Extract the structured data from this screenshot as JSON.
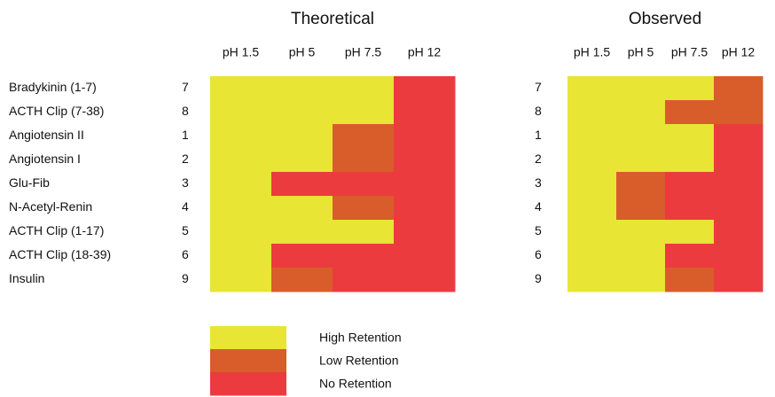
{
  "panels": [
    {
      "title": "Theoretical",
      "columns": [
        "pH 1.5",
        "pH 5",
        "pH 7.5",
        "pH 12"
      ],
      "cells": [
        [
          "High Retention",
          "High Retention",
          "High Retention",
          "No Retention"
        ],
        [
          "High Retention",
          "High Retention",
          "High Retention",
          "No Retention"
        ],
        [
          "High Retention",
          "High Retention",
          "Low Retention",
          "No Retention"
        ],
        [
          "High Retention",
          "High Retention",
          "Low Retention",
          "No Retention"
        ],
        [
          "High Retention",
          "No Retention",
          "No Retention",
          "No Retention"
        ],
        [
          "High Retention",
          "High Retention",
          "Low Retention",
          "No Retention"
        ],
        [
          "High Retention",
          "High Retention",
          "High Retention",
          "No Retention"
        ],
        [
          "High Retention",
          "No Retention",
          "No Retention",
          "No Retention"
        ],
        [
          "High Retention",
          "Low Retention",
          "No Retention",
          "No Retention"
        ]
      ]
    },
    {
      "title": "Observed",
      "columns": [
        "pH 1.5",
        "pH 5",
        "pH 7.5",
        "pH 12"
      ],
      "cells": [
        [
          "High Retention",
          "High Retention",
          "High Retention",
          "Low Retention"
        ],
        [
          "High Retention",
          "High Retention",
          "Low Retention",
          "Low Retention"
        ],
        [
          "High Retention",
          "High Retention",
          "High Retention",
          "No Retention"
        ],
        [
          "High Retention",
          "High Retention",
          "High Retention",
          "No Retention"
        ],
        [
          "High Retention",
          "Low Retention",
          "No Retention",
          "No Retention"
        ],
        [
          "High Retention",
          "Low Retention",
          "No Retention",
          "No Retention"
        ],
        [
          "High Retention",
          "High Retention",
          "High Retention",
          "No Retention"
        ],
        [
          "High Retention",
          "High Retention",
          "No Retention",
          "No Retention"
        ],
        [
          "High Retention",
          "High Retention",
          "Low Retention",
          "No Retention"
        ]
      ]
    }
  ],
  "rows": [
    {
      "name": "Bradykinin (1-7)",
      "id": 7
    },
    {
      "name": "ACTH Clip (7-38)",
      "id": 8
    },
    {
      "name": "Angiotensin II",
      "id": 1
    },
    {
      "name": "Angiotensin I",
      "id": 2
    },
    {
      "name": "Glu-Fib",
      "id": 3
    },
    {
      "name": "N-Acetyl-Renin",
      "id": 4
    },
    {
      "name": "ACTH Clip (1-17)",
      "id": 5
    },
    {
      "name": "ACTH Clip (18-39)",
      "id": 6
    },
    {
      "name": "Insulin",
      "id": 9
    }
  ],
  "legend": [
    {
      "label": "High Retention",
      "color": "#e8e535"
    },
    {
      "label": "Low Retention",
      "color": "#d95c2b"
    },
    {
      "label": "No Retention",
      "color": "#ec3b3f"
    }
  ]
}
